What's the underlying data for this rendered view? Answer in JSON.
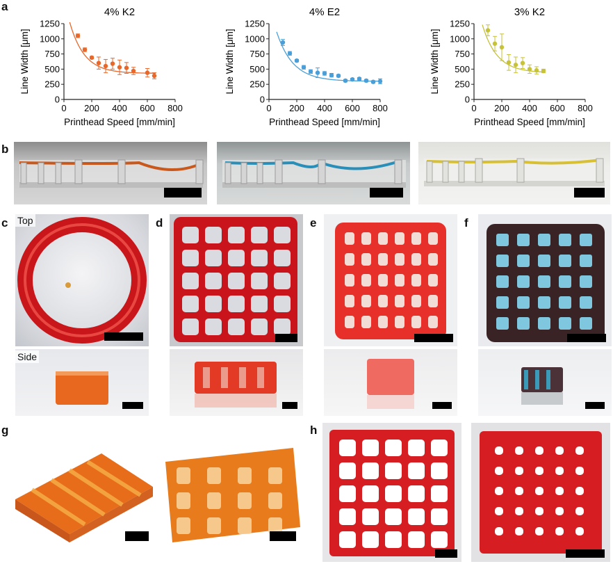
{
  "panel_labels": {
    "a": "a",
    "b": "b",
    "c": "c",
    "d": "d",
    "e": "e",
    "f": "f",
    "g": "g",
    "h": "h"
  },
  "chart_data": [
    {
      "type": "scatter",
      "title": "4% K2",
      "xlabel": "Printhead Speed [mm/min]",
      "ylabel": "Line Width [μm]",
      "xlim": [
        0,
        800
      ],
      "ylim": [
        0,
        1250
      ],
      "xticks": [
        "0",
        "200",
        "400",
        "600",
        "800"
      ],
      "yticks": [
        "0",
        "250",
        "500",
        "750",
        "1000",
        "1250"
      ],
      "color": "#e8672a",
      "points": [
        {
          "x": 100,
          "y": 1050,
          "err": 30
        },
        {
          "x": 150,
          "y": 820,
          "err": 30
        },
        {
          "x": 200,
          "y": 690,
          "err": 20
        },
        {
          "x": 250,
          "y": 600,
          "err": 100
        },
        {
          "x": 300,
          "y": 550,
          "err": 110
        },
        {
          "x": 350,
          "y": 590,
          "err": 90
        },
        {
          "x": 400,
          "y": 530,
          "err": 120
        },
        {
          "x": 450,
          "y": 520,
          "err": 90
        },
        {
          "x": 500,
          "y": 470,
          "err": 60
        },
        {
          "x": 600,
          "y": 440,
          "err": 70
        },
        {
          "x": 650,
          "y": 390,
          "err": 50
        }
      ],
      "fit": {
        "a": 1250,
        "b": 0.0095,
        "c": 430,
        "from": 20,
        "to": 660
      }
    },
    {
      "type": "scatter",
      "title": "4% E2",
      "xlabel": "Printhead Speed [mm/min]",
      "ylabel": "Line Width [μm]",
      "xlim": [
        0,
        800
      ],
      "ylim": [
        0,
        1250
      ],
      "xticks": [
        "0",
        "200",
        "400",
        "600",
        "800"
      ],
      "yticks": [
        "0",
        "250",
        "500",
        "750",
        "1000",
        "1250"
      ],
      "color": "#4a9fd8",
      "points": [
        {
          "x": 100,
          "y": 940,
          "err": 50
        },
        {
          "x": 150,
          "y": 760,
          "err": 30
        },
        {
          "x": 200,
          "y": 640,
          "err": 20
        },
        {
          "x": 250,
          "y": 530,
          "err": 30
        },
        {
          "x": 300,
          "y": 460,
          "err": 30
        },
        {
          "x": 350,
          "y": 440,
          "err": 80
        },
        {
          "x": 400,
          "y": 430,
          "err": 30
        },
        {
          "x": 450,
          "y": 400,
          "err": 30
        },
        {
          "x": 500,
          "y": 390,
          "err": 20
        },
        {
          "x": 550,
          "y": 310,
          "err": 20
        },
        {
          "x": 600,
          "y": 330,
          "err": 20
        },
        {
          "x": 650,
          "y": 340,
          "err": 20
        },
        {
          "x": 700,
          "y": 310,
          "err": 20
        },
        {
          "x": 750,
          "y": 290,
          "err": 20
        },
        {
          "x": 800,
          "y": 300,
          "err": 40
        }
      ],
      "fit": {
        "a": 1300,
        "b": 0.0085,
        "c": 300,
        "from": 55,
        "to": 800
      }
    },
    {
      "type": "scatter",
      "title": "3% K2",
      "xlabel": "Printhead Speed [mm/min]",
      "ylabel": "Line Width [μm]",
      "xlim": [
        0,
        800
      ],
      "ylim": [
        0,
        1250
      ],
      "xticks": [
        "0",
        "200",
        "400",
        "600",
        "800"
      ],
      "yticks": [
        "0",
        "250",
        "500",
        "750",
        "1000",
        "1250"
      ],
      "color": "#c6c23a",
      "points": [
        {
          "x": 100,
          "y": 1140,
          "err": 90
        },
        {
          "x": 150,
          "y": 920,
          "err": 120
        },
        {
          "x": 200,
          "y": 860,
          "err": 220
        },
        {
          "x": 250,
          "y": 610,
          "err": 130
        },
        {
          "x": 300,
          "y": 570,
          "err": 130
        },
        {
          "x": 350,
          "y": 600,
          "err": 90
        },
        {
          "x": 400,
          "y": 500,
          "err": 70
        },
        {
          "x": 450,
          "y": 480,
          "err": 60
        },
        {
          "x": 500,
          "y": 470,
          "err": 30
        }
      ],
      "fit": {
        "a": 1400,
        "b": 0.0095,
        "c": 440,
        "from": 60,
        "to": 500
      }
    }
  ],
  "photo_labels": {
    "top": "Top",
    "side": "Side"
  },
  "colors": {
    "red_gel": "#d81f24",
    "orange_gel": "#ea7a1f",
    "blue_gel": "#2a8fb8",
    "yellow_gel": "#d8c034",
    "dark_gel": "#3a2a2a"
  }
}
